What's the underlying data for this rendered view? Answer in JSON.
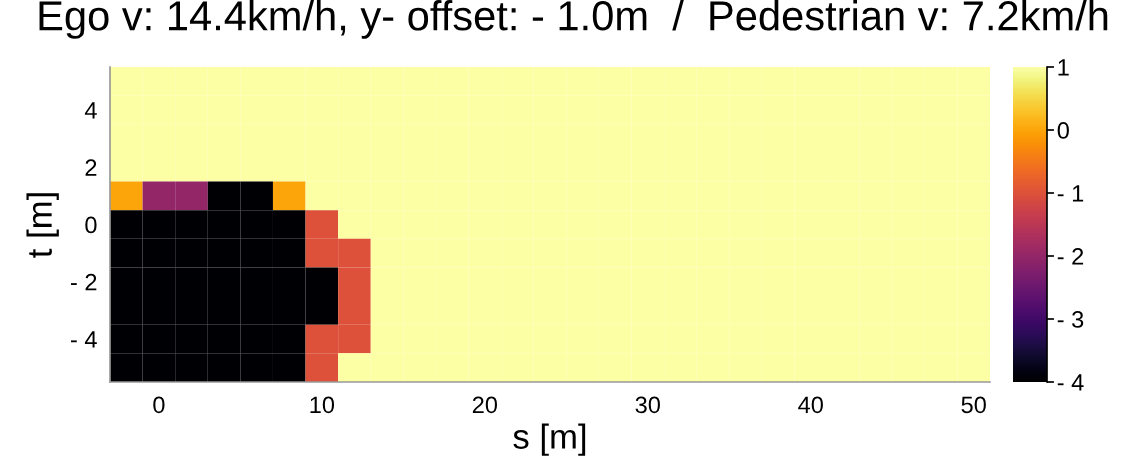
{
  "chart_data": {
    "type": "heatmap",
    "title": "Ego v: 14.4km/h, y- offset: - 1.0m  /  Pedestrian v: 7.2km/h",
    "xlabel": "s [m]",
    "ylabel": "t [m]",
    "x": [
      -2,
      0,
      2,
      4,
      6,
      8,
      10,
      12,
      14,
      16,
      18,
      20,
      22,
      24,
      26,
      28,
      30,
      32,
      34,
      36,
      38,
      40,
      42,
      44,
      46,
      48,
      50
    ],
    "cells": [
      [
        1,
        1,
        1,
        1,
        1,
        1,
        1,
        1,
        1,
        1,
        1,
        1,
        1,
        1,
        1,
        1,
        1,
        1,
        1,
        1,
        1,
        1,
        1,
        1,
        1,
        1,
        1
      ],
      [
        1,
        1,
        1,
        1,
        1,
        1,
        1,
        1,
        1,
        1,
        1,
        1,
        1,
        1,
        1,
        1,
        1,
        1,
        1,
        1,
        1,
        1,
        1,
        1,
        1,
        1,
        1
      ],
      [
        1,
        1,
        1,
        1,
        1,
        1,
        1,
        1,
        1,
        1,
        1,
        1,
        1,
        1,
        1,
        1,
        1,
        1,
        1,
        1,
        1,
        1,
        1,
        1,
        1,
        1,
        1
      ],
      [
        1,
        1,
        1,
        1,
        1,
        1,
        1,
        1,
        1,
        1,
        1,
        1,
        1,
        1,
        1,
        1,
        1,
        1,
        1,
        1,
        1,
        1,
        1,
        1,
        1,
        1,
        1
      ],
      [
        0,
        -2,
        -2,
        -4,
        -4,
        0,
        1,
        1,
        1,
        1,
        1,
        1,
        1,
        1,
        1,
        1,
        1,
        1,
        1,
        1,
        1,
        1,
        1,
        1,
        1,
        1,
        1
      ],
      [
        -4,
        -4,
        -4,
        -4,
        -4,
        -4,
        -1,
        1,
        1,
        1,
        1,
        1,
        1,
        1,
        1,
        1,
        1,
        1,
        1,
        1,
        1,
        1,
        1,
        1,
        1,
        1,
        1
      ],
      [
        -4,
        -4,
        -4,
        -4,
        -4,
        -4,
        -1,
        -1,
        1,
        1,
        1,
        1,
        1,
        1,
        1,
        1,
        1,
        1,
        1,
        1,
        1,
        1,
        1,
        1,
        1,
        1,
        1
      ],
      [
        -4,
        -4,
        -4,
        -4,
        -4,
        -4,
        -4,
        -1,
        1,
        1,
        1,
        1,
        1,
        1,
        1,
        1,
        1,
        1,
        1,
        1,
        1,
        1,
        1,
        1,
        1,
        1,
        1
      ],
      [
        -4,
        -4,
        -4,
        -4,
        -4,
        -4,
        -4,
        -1,
        1,
        1,
        1,
        1,
        1,
        1,
        1,
        1,
        1,
        1,
        1,
        1,
        1,
        1,
        1,
        1,
        1,
        1,
        1
      ],
      [
        -4,
        -4,
        -4,
        -4,
        -4,
        -4,
        -1,
        -1,
        1,
        1,
        1,
        1,
        1,
        1,
        1,
        1,
        1,
        1,
        1,
        1,
        1,
        1,
        1,
        1,
        1,
        1,
        1
      ],
      [
        -4,
        -4,
        -4,
        -4,
        -4,
        -4,
        -1,
        1,
        1,
        1,
        1,
        1,
        1,
        1,
        1,
        1,
        1,
        1,
        1,
        1,
        1,
        1,
        1,
        1,
        1,
        1,
        1
      ]
    ],
    "xlim": [
      -3,
      51
    ],
    "ylim": [
      -5.5,
      5.5
    ],
    "xticks": [
      0,
      10,
      20,
      30,
      40,
      50
    ],
    "yticks": [
      {
        "value": -4,
        "label": "- 4"
      },
      {
        "value": -2,
        "label": "- 2"
      },
      0,
      2,
      4
    ],
    "clim": [
      -4,
      1
    ],
    "cticks": [
      {
        "value": -4,
        "label": "- 4"
      },
      {
        "value": -3,
        "label": "- 3"
      },
      {
        "value": -2,
        "label": "- 2"
      },
      {
        "value": -1,
        "label": "- 1"
      },
      0,
      1
    ]
  }
}
